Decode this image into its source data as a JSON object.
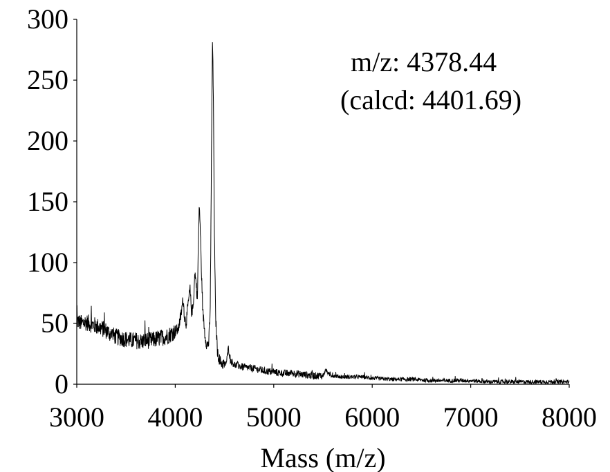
{
  "chart_data": {
    "type": "line",
    "title": "",
    "xlabel": "Mass (m/z)",
    "ylabel": "",
    "xlim": [
      3000,
      8000
    ],
    "ylim": [
      0,
      300
    ],
    "x_ticks": [
      3000,
      4000,
      5000,
      6000,
      7000,
      8000
    ],
    "y_ticks": [
      0,
      50,
      100,
      150,
      200,
      250,
      300
    ],
    "x_tick_labels": [
      "3000",
      "4000",
      "5000",
      "6000",
      "7000",
      "8000"
    ],
    "y_tick_labels": [
      "0",
      "50",
      "100",
      "150",
      "200",
      "250",
      "300"
    ],
    "grid": false,
    "legend": "none",
    "annotations": [
      {
        "text": "m/z: 4378.44"
      },
      {
        "text": "(calcd: 4401.69)"
      }
    ],
    "series": [
      {
        "color": "#000000",
        "points": [
          [
            3000,
            52
          ],
          [
            3050,
            50
          ],
          [
            3100,
            51
          ],
          [
            3150,
            49
          ],
          [
            3200,
            48
          ],
          [
            3250,
            46
          ],
          [
            3300,
            44
          ],
          [
            3350,
            41
          ],
          [
            3400,
            39
          ],
          [
            3450,
            38
          ],
          [
            3500,
            37
          ],
          [
            3550,
            36
          ],
          [
            3600,
            36
          ],
          [
            3650,
            35
          ],
          [
            3700,
            36
          ],
          [
            3750,
            36
          ],
          [
            3800,
            37
          ],
          [
            3850,
            38
          ],
          [
            3900,
            39
          ],
          [
            3950,
            41
          ],
          [
            4000,
            44
          ],
          [
            4030,
            45
          ],
          [
            4060,
            58
          ],
          [
            4080,
            70
          ],
          [
            4095,
            55
          ],
          [
            4110,
            50
          ],
          [
            4130,
            65
          ],
          [
            4150,
            78
          ],
          [
            4165,
            60
          ],
          [
            4180,
            62
          ],
          [
            4200,
            92
          ],
          [
            4215,
            80
          ],
          [
            4225,
            70
          ],
          [
            4235,
            120
          ],
          [
            4245,
            148
          ],
          [
            4255,
            125
          ],
          [
            4265,
            95
          ],
          [
            4280,
            60
          ],
          [
            4300,
            42
          ],
          [
            4320,
            32
          ],
          [
            4340,
            34
          ],
          [
            4355,
            60
          ],
          [
            4368,
            190
          ],
          [
            4378,
            287
          ],
          [
            4388,
            230
          ],
          [
            4398,
            120
          ],
          [
            4410,
            55
          ],
          [
            4430,
            25
          ],
          [
            4460,
            18
          ],
          [
            4500,
            16
          ],
          [
            4520,
            18
          ],
          [
            4540,
            30
          ],
          [
            4560,
            20
          ],
          [
            4600,
            16
          ],
          [
            4700,
            14
          ],
          [
            4800,
            13
          ],
          [
            4900,
            11
          ],
          [
            5000,
            10
          ],
          [
            5100,
            9
          ],
          [
            5200,
            9
          ],
          [
            5300,
            8
          ],
          [
            5400,
            7
          ],
          [
            5500,
            7
          ],
          [
            5530,
            12
          ],
          [
            5560,
            8
          ],
          [
            5600,
            7
          ],
          [
            5700,
            6
          ],
          [
            5800,
            6
          ],
          [
            5900,
            6
          ],
          [
            6000,
            5
          ],
          [
            6200,
            4
          ],
          [
            6400,
            4
          ],
          [
            6600,
            3
          ],
          [
            6800,
            3
          ],
          [
            7000,
            3
          ],
          [
            7200,
            2
          ],
          [
            7400,
            2
          ],
          [
            7600,
            2
          ],
          [
            7800,
            2
          ],
          [
            8000,
            2
          ]
        ]
      }
    ]
  }
}
